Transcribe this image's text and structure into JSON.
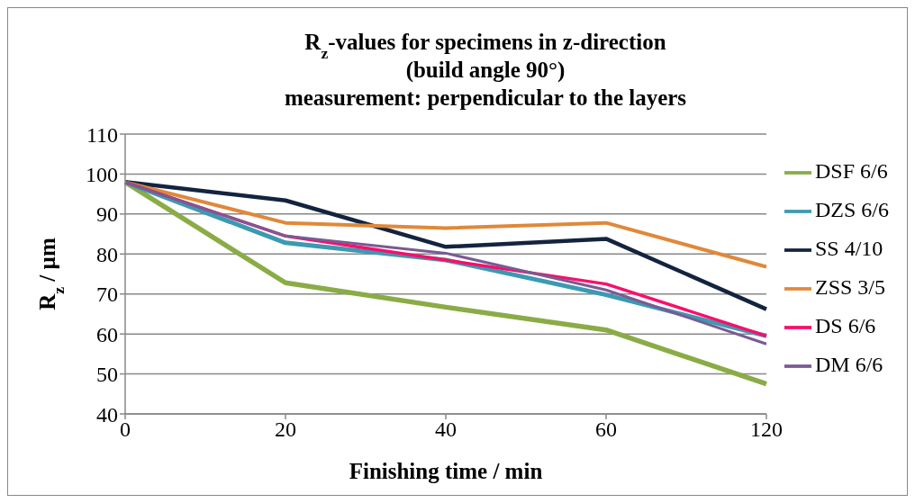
{
  "chart_data": {
    "type": "line",
    "title": "R$_{z}$-values for specimens in z-direction\n(build angle 90°)\nmeasurement: perpendicular to the layers",
    "xlabel": "Finishing time / min",
    "ylabel": "R$_{z}$ / µm",
    "categories": [
      "0",
      "20",
      "40",
      "60",
      "120"
    ],
    "series": [
      {
        "name": "DSF 6/6",
        "color": "#8aac46",
        "values": [
          98,
          72.8,
          66.7,
          61,
          47.5
        ]
      },
      {
        "name": "DZS 6/6",
        "color": "#3b9ab2",
        "values": [
          98,
          82.8,
          78.5,
          69.8,
          59.5
        ]
      },
      {
        "name": "SS 4/10",
        "color": "#14243f",
        "values": [
          98,
          93.4,
          81.8,
          83.8,
          66.2
        ]
      },
      {
        "name": "ZSS 3/5",
        "color": "#e0883a",
        "values": [
          98,
          87.8,
          86.5,
          87.8,
          76.8
        ]
      },
      {
        "name": "DS 6/6",
        "color": "#fa0e6a",
        "values": [
          98,
          84.5,
          78.5,
          72.5,
          59.5
        ]
      },
      {
        "name": "DM 6/6",
        "color": "#7a5a94",
        "values": [
          98,
          84.5,
          80.2,
          71,
          57.5
        ]
      }
    ],
    "ylim": [
      40,
      110
    ],
    "yticks": [
      40,
      50,
      60,
      70,
      80,
      90,
      100,
      110
    ],
    "grid": "y",
    "legend": "right",
    "marker": "none",
    "line_style": "solid"
  }
}
